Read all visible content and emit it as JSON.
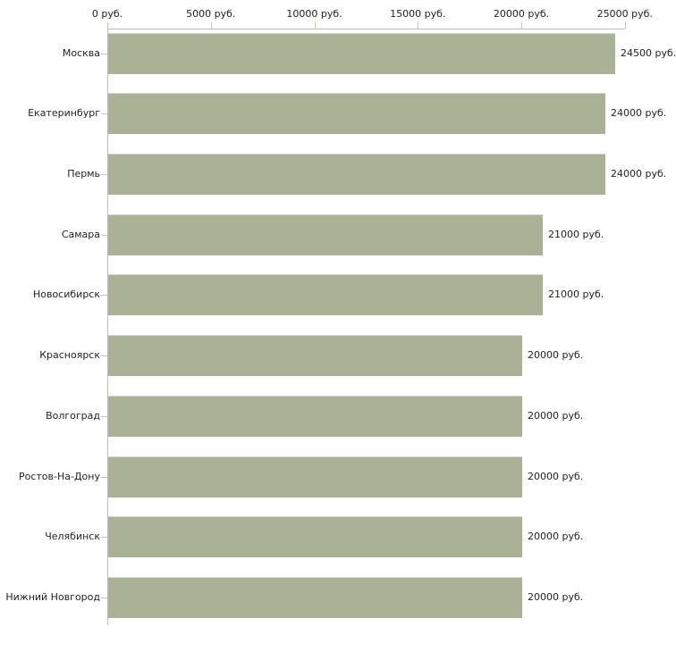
{
  "chart_data": {
    "type": "bar",
    "orientation": "horizontal",
    "title": "",
    "categories": [
      "Москва",
      "Екатеринбург",
      "Пермь",
      "Самара",
      "Новосибирск",
      "Красноярск",
      "Волгоград",
      "Ростов-На-Дону",
      "Челябинск",
      "Нижний Новгород"
    ],
    "values": [
      24500,
      24000,
      24000,
      21000,
      21000,
      20000,
      20000,
      20000,
      20000,
      20000
    ],
    "value_labels": [
      "24500 руб.",
      "24000 руб.",
      "24000 руб.",
      "21000 руб.",
      "21000 руб.",
      "20000 руб.",
      "20000 руб.",
      "20000 руб.",
      "20000 руб.",
      "20000 руб."
    ],
    "x_axis": {
      "position": "top",
      "unit": "руб.",
      "min": 0,
      "max": 25000,
      "tick_values": [
        0,
        5000,
        10000,
        15000,
        20000,
        25000
      ],
      "tick_labels": [
        "0 руб.",
        "5000 руб.",
        "10000 руб.",
        "15000 руб.",
        "20000 руб.",
        "25000 руб."
      ]
    },
    "grid": false,
    "legend": false
  },
  "colors": {
    "background": "#ffffff",
    "bar_fill": "#aab194",
    "bar_edge": "#d6d6d0",
    "axis_line": "#bdbdbd",
    "tick_mark": "#c6c69e",
    "text": "#1f1f1f"
  }
}
